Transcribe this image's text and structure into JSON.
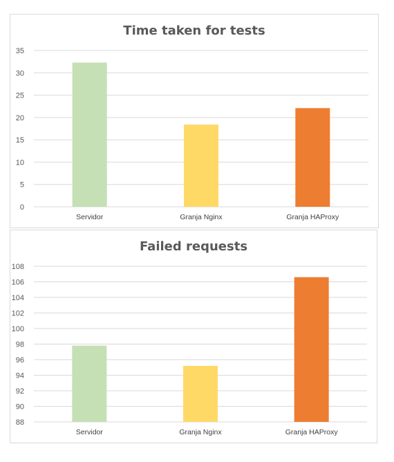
{
  "chart_data": [
    {
      "type": "bar",
      "title": "Time taken for tests",
      "categories": [
        "Servidor",
        "Granja Nginx",
        "Granja HAProxy"
      ],
      "values": [
        32.3,
        18.4,
        22.1
      ],
      "colors": [
        "#c5e0b4",
        "#ffd966",
        "#ed7d31"
      ],
      "ylim": [
        0,
        35
      ],
      "yticks": [
        0,
        5,
        10,
        15,
        20,
        25,
        30,
        35
      ],
      "grid": true,
      "xlabel": "",
      "ylabel": ""
    },
    {
      "type": "bar",
      "title": "Failed requests",
      "categories": [
        "Servidor",
        "Granja Nginx",
        "Granja HAProxy"
      ],
      "values": [
        97.8,
        95.2,
        106.6
      ],
      "colors": [
        "#c5e0b4",
        "#ffd966",
        "#ed7d31"
      ],
      "ylim": [
        88,
        108
      ],
      "yticks": [
        88,
        90,
        92,
        94,
        96,
        98,
        100,
        102,
        104,
        106,
        108
      ],
      "grid": true,
      "xlabel": "",
      "ylabel": ""
    }
  ]
}
